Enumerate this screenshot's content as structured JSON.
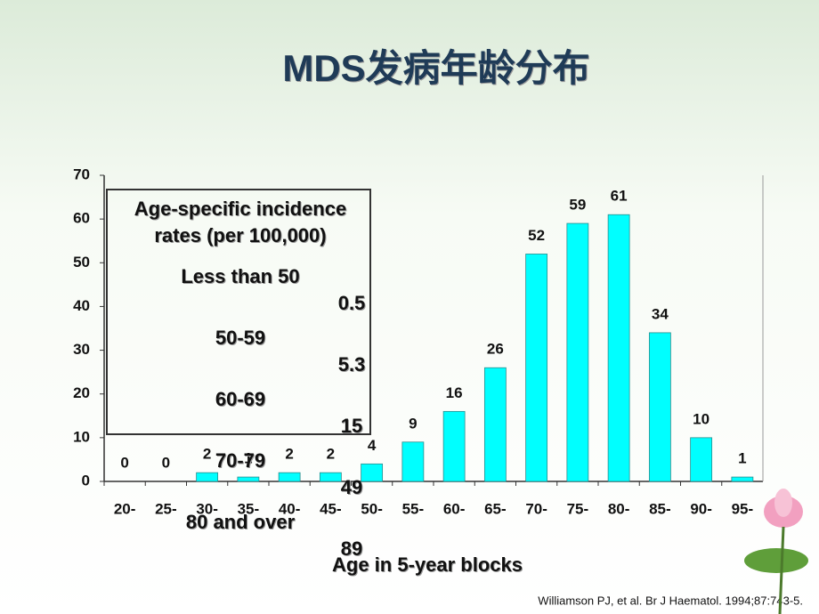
{
  "chart_data": {
    "type": "bar",
    "title": "MDS发病年龄分布",
    "x_label": "Age in 5-year blocks",
    "categories": [
      "20-",
      "25-",
      "30-",
      "35-",
      "40-",
      "45-",
      "50-",
      "55-",
      "60-",
      "65-",
      "70-",
      "75-",
      "80-",
      "85-",
      "90-",
      "95-"
    ],
    "values": [
      0,
      0,
      2,
      1,
      2,
      2,
      4,
      9,
      16,
      26,
      52,
      59,
      61,
      34,
      10,
      1
    ],
    "color": "#00ffff",
    "ylim": [
      0,
      70
    ],
    "yticks": [
      0,
      10,
      20,
      30,
      40,
      50,
      60,
      70
    ],
    "grid": false,
    "inset": {
      "title_lines": [
        "Age-specific incidence",
        "rates (per 100,000)"
      ],
      "rows": [
        {
          "label": "Less than 50",
          "value": "0.5"
        },
        {
          "label": "50-59",
          "value": "5.3"
        },
        {
          "label": "60-69",
          "value": "15"
        },
        {
          "label": "70-79",
          "value": "49"
        },
        {
          "label": "80 and over",
          "value": "89"
        }
      ]
    },
    "citation": "Williamson PJ, et al. Br J Haematol. 1994;87:743-5."
  }
}
